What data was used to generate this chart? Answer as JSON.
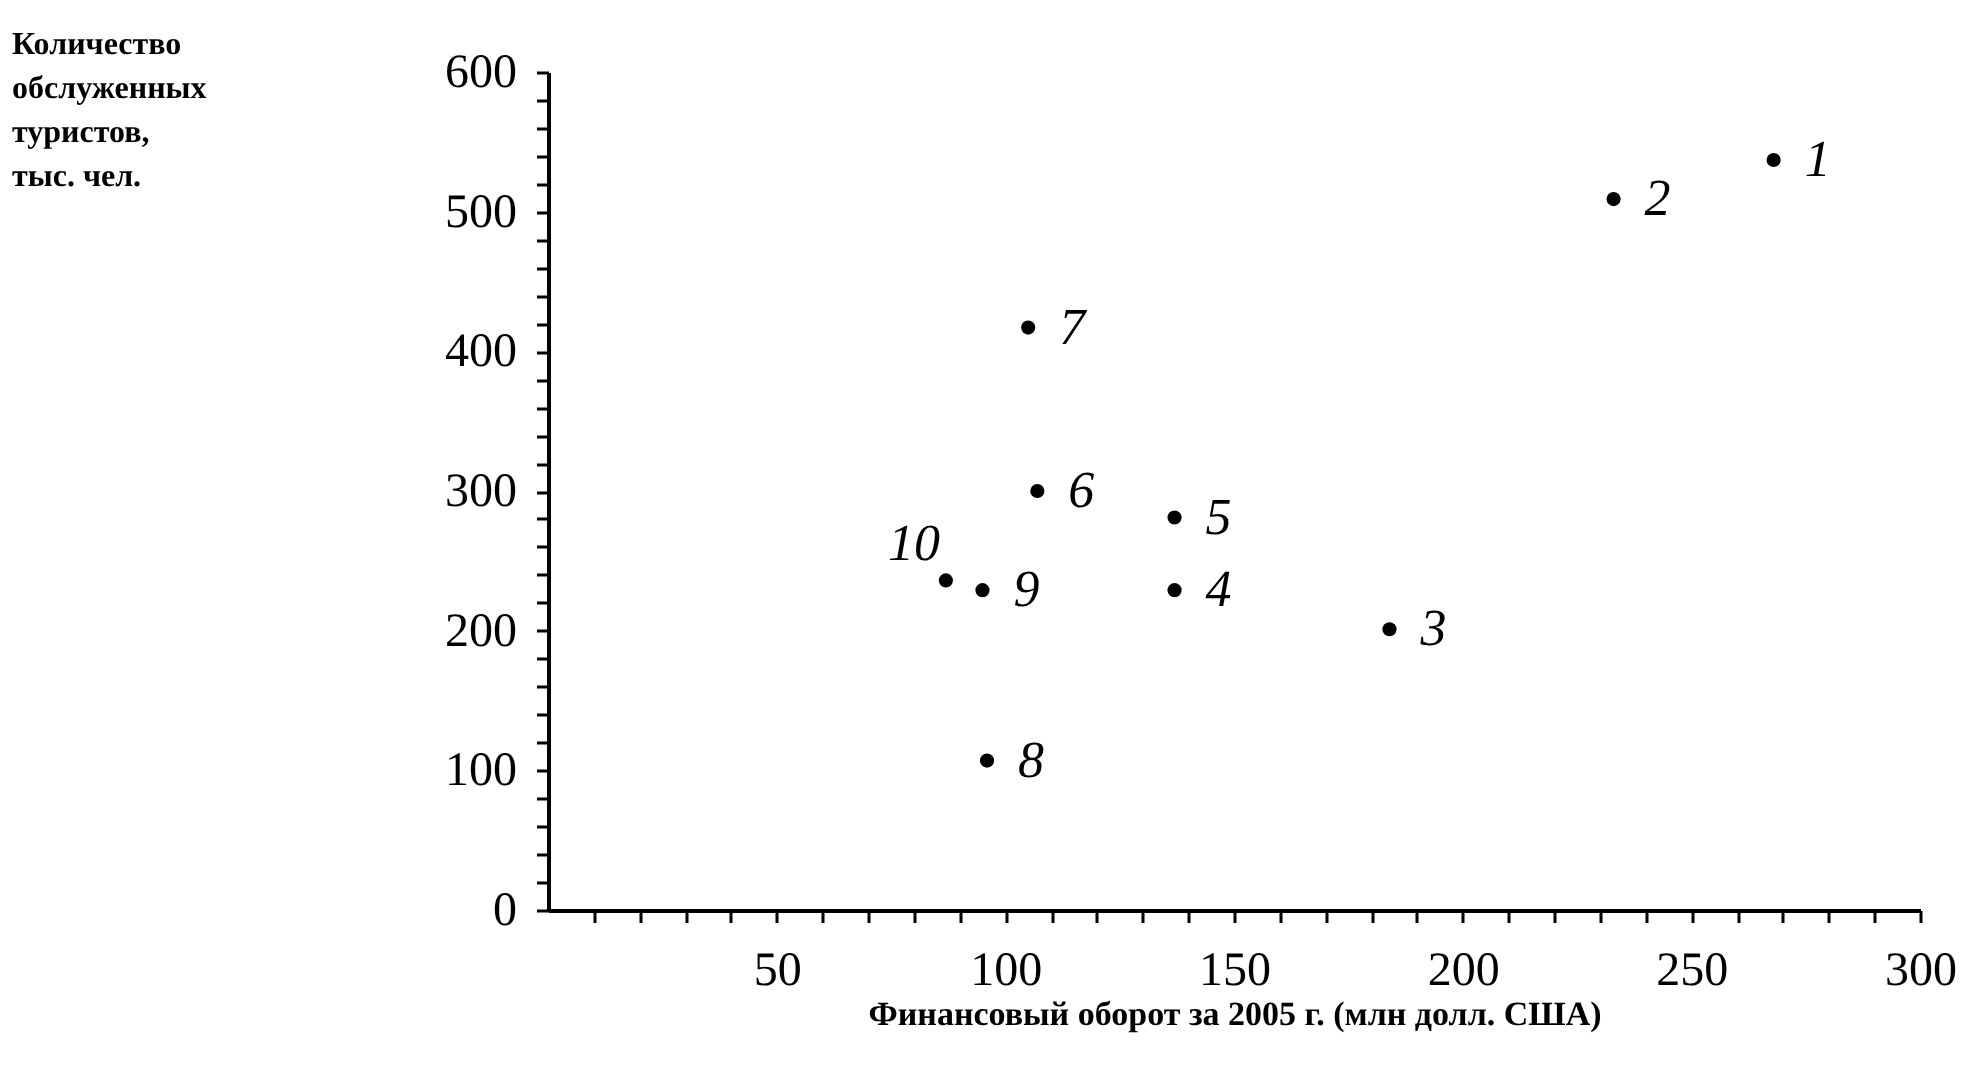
{
  "chart_data": {
    "type": "scatter",
    "xlabel": "Финансовый оборот за 2005 г. (млн долл. США)",
    "x": [
      268,
      233,
      184,
      137,
      137,
      107,
      105,
      96,
      95,
      87
    ],
    "series": [
      {
        "color": "#000000",
        "values": [
          537,
          509,
          201,
          229,
          281,
          300,
          417,
          107,
          229,
          236
        ]
      }
    ],
    "marker": "circle",
    "grid": false,
    "xlim": [
      0,
      300
    ],
    "xticks": [
      {
        "value": 10,
        "label": null
      },
      {
        "value": 20,
        "label": null
      },
      {
        "value": 30,
        "label": null
      },
      {
        "value": 40,
        "label": null
      },
      50,
      {
        "value": 60,
        "label": null
      },
      {
        "value": 70,
        "label": null
      },
      {
        "value": 80,
        "label": null
      },
      {
        "value": 90,
        "label": null
      },
      100,
      {
        "value": 110,
        "label": null
      },
      {
        "value": 120,
        "label": null
      },
      {
        "value": 130,
        "label": null
      },
      {
        "value": 140,
        "label": null
      },
      150,
      {
        "value": 160,
        "label": null
      },
      {
        "value": 170,
        "label": null
      },
      {
        "value": 180,
        "label": null
      },
      {
        "value": 190,
        "label": null
      },
      200,
      {
        "value": 210,
        "label": null
      },
      {
        "value": 220,
        "label": null
      },
      {
        "value": 230,
        "label": null
      },
      {
        "value": 240,
        "label": null
      },
      250,
      {
        "value": 260,
        "label": null
      },
      {
        "value": 270,
        "label": null
      },
      {
        "value": 280,
        "label": null
      },
      {
        "value": 290,
        "label": null
      },
      300
    ],
    "ylim": [
      0,
      600
    ],
    "yticks": [
      0,
      {
        "value": 20,
        "label": null
      },
      {
        "value": 40,
        "label": null
      },
      {
        "value": 60,
        "label": null
      },
      {
        "value": 80,
        "label": null
      },
      100,
      {
        "value": 120,
        "label": null
      },
      {
        "value": 140,
        "label": null
      },
      {
        "value": 160,
        "label": null
      },
      {
        "value": 180,
        "label": null
      },
      200,
      {
        "value": 220,
        "label": null
      },
      {
        "value": 240,
        "label": null
      },
      {
        "value": 260,
        "label": null
      },
      {
        "value": 280,
        "label": null
      },
      300,
      {
        "value": 320,
        "label": null
      },
      {
        "value": 340,
        "label": null
      },
      {
        "value": 360,
        "label": null
      },
      {
        "value": 380,
        "label": null
      },
      400,
      {
        "value": 420,
        "label": null
      },
      {
        "value": 440,
        "label": null
      },
      {
        "value": 460,
        "label": null
      },
      {
        "value": 480,
        "label": null
      },
      500,
      {
        "value": 520,
        "label": null
      },
      {
        "value": 540,
        "label": null
      },
      {
        "value": 560,
        "label": null
      },
      {
        "value": 580,
        "label": null
      },
      600
    ],
    "annotations": [
      "Количество\nобслуженных\nтуристов,\nтыс. чел.",
      {
        "text": "1",
        "x": 268,
        "y": 537
      },
      {
        "text": "2",
        "x": 233,
        "y": 509
      },
      {
        "text": "3",
        "x": 184,
        "y": 201
      },
      {
        "text": "4",
        "x": 137,
        "y": 229
      },
      {
        "text": "5",
        "x": 137,
        "y": 281
      },
      {
        "text": "6",
        "x": 107,
        "y": 300
      },
      {
        "text": "7",
        "x": 105,
        "y": 417
      },
      {
        "text": "8",
        "x": 96,
        "y": 107
      },
      {
        "text": "9",
        "x": 95,
        "y": 229
      },
      {
        "text": "10",
        "x": 87,
        "y": 236
      }
    ]
  }
}
